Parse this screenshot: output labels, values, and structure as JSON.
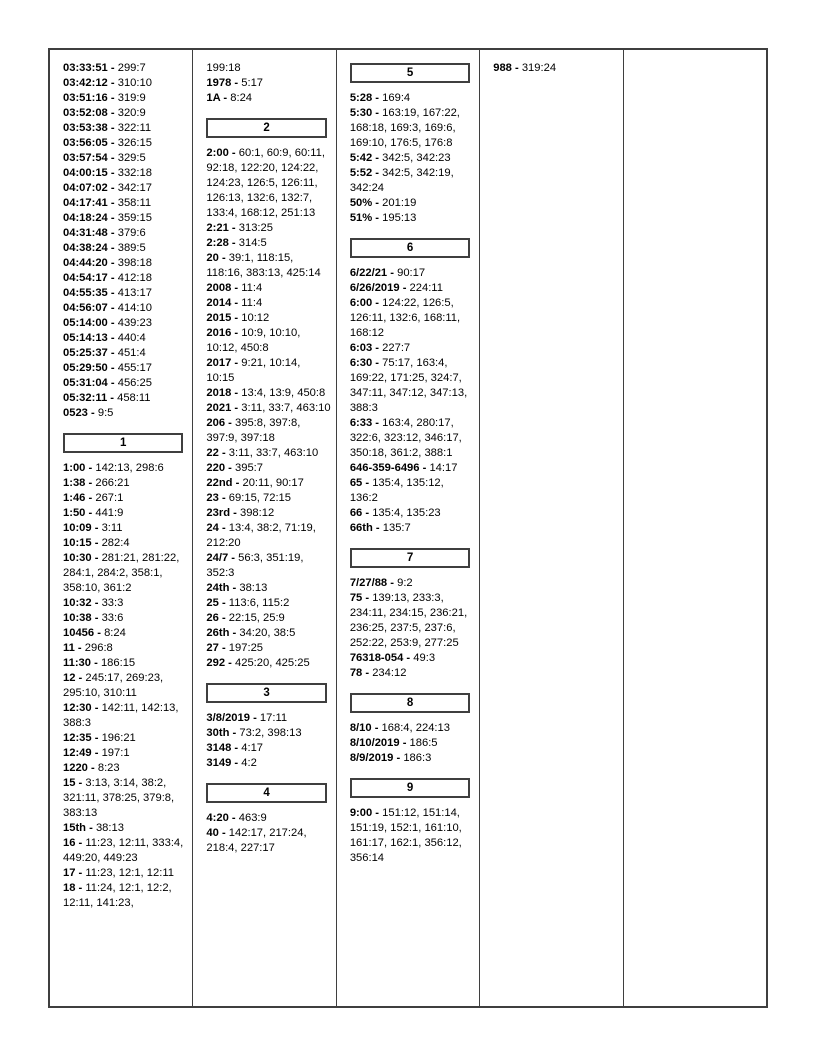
{
  "document": {
    "type": "transcript-word-index-page",
    "colors": {
      "border": "#3f3f3f",
      "text": "#000000",
      "background": "#ffffff"
    },
    "columns": [
      {
        "sections": [
          {
            "header": null,
            "entries": [
              {
                "term": "03:33:51",
                "refs": "299:7"
              },
              {
                "term": "03:42:12",
                "refs": "310:10"
              },
              {
                "term": "03:51:16",
                "refs": "319:9"
              },
              {
                "term": "03:52:08",
                "refs": "320:9"
              },
              {
                "term": "03:53:38",
                "refs": "322:11"
              },
              {
                "term": "03:56:05",
                "refs": "326:15"
              },
              {
                "term": "03:57:54",
                "refs": "329:5"
              },
              {
                "term": "04:00:15",
                "refs": "332:18"
              },
              {
                "term": "04:07:02",
                "refs": "342:17"
              },
              {
                "term": "04:17:41",
                "refs": "358:11"
              },
              {
                "term": "04:18:24",
                "refs": "359:15"
              },
              {
                "term": "04:31:48",
                "refs": "379:6"
              },
              {
                "term": "04:38:24",
                "refs": "389:5"
              },
              {
                "term": "04:44:20",
                "refs": "398:18"
              },
              {
                "term": "04:54:17",
                "refs": "412:18"
              },
              {
                "term": "04:55:35",
                "refs": "413:17"
              },
              {
                "term": "04:56:07",
                "refs": "414:10"
              },
              {
                "term": "05:14:00",
                "refs": "439:23"
              },
              {
                "term": "05:14:13",
                "refs": "440:4"
              },
              {
                "term": "05:25:37",
                "refs": "451:4"
              },
              {
                "term": "05:29:50",
                "refs": "455:17"
              },
              {
                "term": "05:31:04",
                "refs": "456:25"
              },
              {
                "term": "05:32:11",
                "refs": "458:11"
              },
              {
                "term": "0523",
                "refs": "9:5"
              }
            ]
          },
          {
            "header": "1",
            "entries": [
              {
                "term": "1:00",
                "refs": "142:13, 298:6"
              },
              {
                "term": "1:38",
                "refs": "266:21"
              },
              {
                "term": "1:46",
                "refs": "267:1"
              },
              {
                "term": "1:50",
                "refs": "441:9"
              },
              {
                "term": "10:09",
                "refs": "3:11"
              },
              {
                "term": "10:15",
                "refs": "282:4"
              },
              {
                "term": "10:30",
                "refs": "281:21, 281:22, 284:1, 284:2, 358:1, 358:10, 361:2"
              },
              {
                "term": "10:32",
                "refs": "33:3"
              },
              {
                "term": "10:38",
                "refs": "33:6"
              },
              {
                "term": "10456",
                "refs": "8:24"
              },
              {
                "term": "11",
                "refs": "296:8"
              },
              {
                "term": "11:30",
                "refs": "186:15"
              },
              {
                "term": "12",
                "refs": "245:17, 269:23, 295:10, 310:11"
              },
              {
                "term": "12:30",
                "refs": "142:11, 142:13, 388:3"
              },
              {
                "term": "12:35",
                "refs": "196:21"
              },
              {
                "term": "12:49",
                "refs": "197:1"
              },
              {
                "term": "1220",
                "refs": "8:23"
              },
              {
                "term": "15",
                "refs": "3:13, 3:14, 38:2, 321:11, 378:25, 379:8, 383:13"
              },
              {
                "term": "15th",
                "refs": "38:13"
              },
              {
                "term": "16",
                "refs": "11:23, 12:11, 333:4, 449:20, 449:23"
              },
              {
                "term": "17",
                "refs": "11:23, 12:1, 12:11"
              },
              {
                "term": "18",
                "refs": "11:24, 12:1, 12:2, 12:11, 141:23,"
              }
            ]
          }
        ]
      },
      {
        "sections": [
          {
            "header": null,
            "entries": [
              {
                "term": "",
                "refs": "199:18"
              },
              {
                "term": "1978",
                "refs": "5:17"
              },
              {
                "term": "1A",
                "refs": "8:24"
              }
            ]
          },
          {
            "header": "2",
            "entries": [
              {
                "term": "2:00",
                "refs": "60:1, 60:9, 60:11, 92:18, 122:20, 124:22, 124:23, 126:5, 126:11, 126:13, 132:6, 132:7, 133:4, 168:12, 251:13"
              },
              {
                "term": "2:21",
                "refs": "313:25"
              },
              {
                "term": "2:28",
                "refs": "314:5"
              },
              {
                "term": "20",
                "refs": "39:1, 118:15, 118:16, 383:13, 425:14"
              },
              {
                "term": "2008",
                "refs": "11:4"
              },
              {
                "term": "2014",
                "refs": "11:4"
              },
              {
                "term": "2015",
                "refs": "10:12"
              },
              {
                "term": "2016",
                "refs": "10:9, 10:10, 10:12, 450:8"
              },
              {
                "term": "2017",
                "refs": "9:21, 10:14, 10:15"
              },
              {
                "term": "2018",
                "refs": "13:4, 13:9, 450:8"
              },
              {
                "term": "2021",
                "refs": "3:11, 33:7, 463:10"
              },
              {
                "term": "206",
                "refs": "395:8, 397:8, 397:9, 397:18"
              },
              {
                "term": "22",
                "refs": "3:11, 33:7, 463:10"
              },
              {
                "term": "220",
                "refs": "395:7"
              },
              {
                "term": "22nd",
                "refs": "20:11, 90:17"
              },
              {
                "term": "23",
                "refs": "69:15, 72:15"
              },
              {
                "term": "23rd",
                "refs": "398:12"
              },
              {
                "term": "24",
                "refs": "13:4, 38:2, 71:19, 212:20"
              },
              {
                "term": "24/7",
                "refs": "56:3, 351:19, 352:3"
              },
              {
                "term": "24th",
                "refs": "38:13"
              },
              {
                "term": "25",
                "refs": "113:6, 115:2"
              },
              {
                "term": "26",
                "refs": "22:15, 25:9"
              },
              {
                "term": "26th",
                "refs": "34:20, 38:5"
              },
              {
                "term": "27",
                "refs": "197:25"
              },
              {
                "term": "292",
                "refs": "425:20, 425:25"
              }
            ]
          },
          {
            "header": "3",
            "entries": [
              {
                "term": "3/8/2019",
                "refs": "17:11"
              },
              {
                "term": "30th",
                "refs": "73:2, 398:13"
              },
              {
                "term": "3148",
                "refs": "4:17"
              },
              {
                "term": "3149",
                "refs": "4:2"
              }
            ]
          },
          {
            "header": "4",
            "entries": [
              {
                "term": "4:20",
                "refs": "463:9"
              },
              {
                "term": "40",
                "refs": "142:17, 217:24, 218:4, 227:17"
              }
            ]
          }
        ]
      },
      {
        "sections": [
          {
            "header": "5",
            "entries": [
              {
                "term": "5:28",
                "refs": "169:4"
              },
              {
                "term": "5:30",
                "refs": "163:19, 167:22, 168:18, 169:3, 169:6, 169:10, 176:5, 176:8"
              },
              {
                "term": "5:42",
                "refs": "342:5, 342:23"
              },
              {
                "term": "5:52",
                "refs": "342:5, 342:19, 342:24"
              },
              {
                "term": "50%",
                "refs": "201:19"
              },
              {
                "term": "51%",
                "refs": "195:13"
              }
            ]
          },
          {
            "header": "6",
            "entries": [
              {
                "term": "6/22/21",
                "refs": "90:17"
              },
              {
                "term": "6/26/2019",
                "refs": "224:11"
              },
              {
                "term": "6:00",
                "refs": "124:22, 126:5, 126:11, 132:6, 168:11, 168:12"
              },
              {
                "term": "6:03",
                "refs": "227:7"
              },
              {
                "term": "6:30",
                "refs": "75:17, 163:4, 169:22, 171:25, 324:7, 347:11, 347:12, 347:13, 388:3"
              },
              {
                "term": "6:33",
                "refs": "163:4, 280:17, 322:6, 323:12, 346:17, 350:18, 361:2, 388:1"
              },
              {
                "term": "646-359-6496",
                "refs": "14:17"
              },
              {
                "term": "65",
                "refs": "135:4, 135:12, 136:2"
              },
              {
                "term": "66",
                "refs": "135:4, 135:23"
              },
              {
                "term": "66th",
                "refs": "135:7"
              }
            ]
          },
          {
            "header": "7",
            "entries": [
              {
                "term": "7/27/88",
                "refs": "9:2"
              },
              {
                "term": "75",
                "refs": "139:13, 233:3, 234:11, 234:15, 236:21, 236:25, 237:5, 237:6, 252:22, 253:9, 277:25"
              },
              {
                "term": "76318-054",
                "refs": "49:3"
              },
              {
                "term": "78",
                "refs": "234:12"
              }
            ]
          },
          {
            "header": "8",
            "entries": [
              {
                "term": "8/10",
                "refs": "168:4, 224:13"
              },
              {
                "term": "8/10/2019",
                "refs": "186:5"
              },
              {
                "term": "8/9/2019",
                "refs": "186:3"
              }
            ]
          },
          {
            "header": "9",
            "entries": [
              {
                "term": "9:00",
                "refs": "151:12, 151:14, 151:19, 152:1, 161:10, 161:17, 162:1, 356:12, 356:14"
              }
            ]
          }
        ]
      },
      {
        "sections": [
          {
            "header": null,
            "entries": [
              {
                "term": "988",
                "refs": "319:24"
              }
            ]
          }
        ]
      },
      {
        "sections": []
      }
    ]
  }
}
